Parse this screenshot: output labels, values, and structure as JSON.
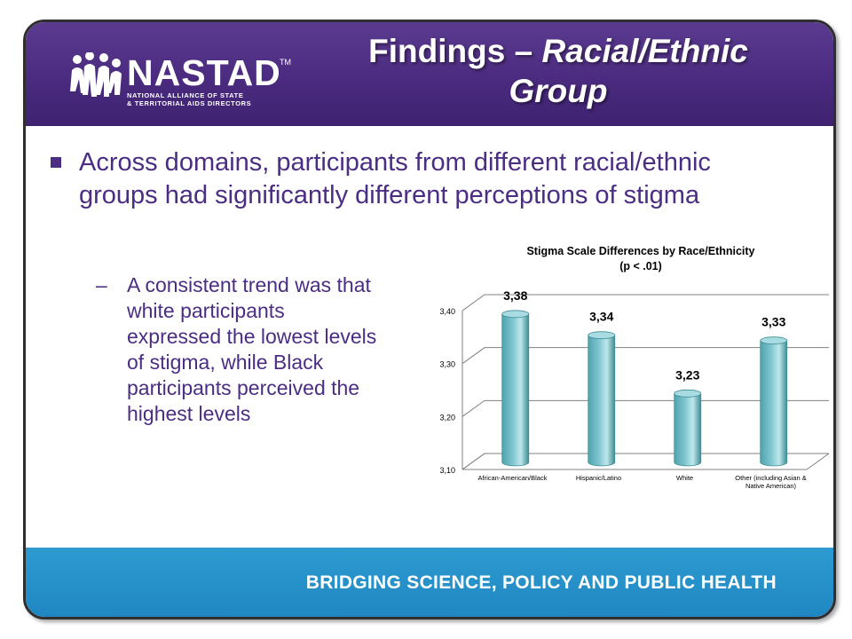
{
  "header": {
    "logo_name": "NASTAD",
    "logo_tm": "TM",
    "logo_subtitle": "NATIONAL ALLIANCE OF STATE\n& TERRITORIAL AIDS DIRECTORS",
    "title_main": "Findings – ",
    "title_italic": "Racial/Ethnic",
    "title_line2": "Group"
  },
  "body": {
    "bullet": "Across domains, participants from different racial/ethnic groups had significantly different perceptions of stigma",
    "sub_dash": "–",
    "sub_bullet": "A consistent trend was that white participants expressed the lowest levels of stigma, while Black participants perceived the highest levels"
  },
  "chart_data": {
    "type": "bar",
    "title": "Stigma Scale Differences by Race/Ethnicity",
    "subtitle": "(p < .01)",
    "categories": [
      "African-American/Black",
      "Hispanic/Latino",
      "White",
      "Other (including Asian & Native American)"
    ],
    "category_labels": [
      [
        "African-American/Black"
      ],
      [
        "Hispanic/Latino"
      ],
      [
        "White"
      ],
      [
        "Other (including Asian &",
        "Native American)"
      ]
    ],
    "values": [
      3.38,
      3.34,
      3.23,
      3.33
    ],
    "data_labels": [
      "3,38",
      "3,34",
      "3,23",
      "3,33"
    ],
    "yticks": [
      3.1,
      3.2,
      3.3,
      3.4
    ],
    "ytick_labels": [
      "3,10",
      "3,20",
      "3,30",
      "3,40"
    ],
    "ylim": [
      3.1,
      3.4
    ],
    "grid": true,
    "bar_color": "#7fc6d0"
  },
  "footer": {
    "tagline": "BRIDGING SCIENCE, POLICY AND PUBLIC HEALTH"
  },
  "colors": {
    "header": "#4a2b7f",
    "text": "#4b2d84",
    "footer": "#1f86c2"
  }
}
